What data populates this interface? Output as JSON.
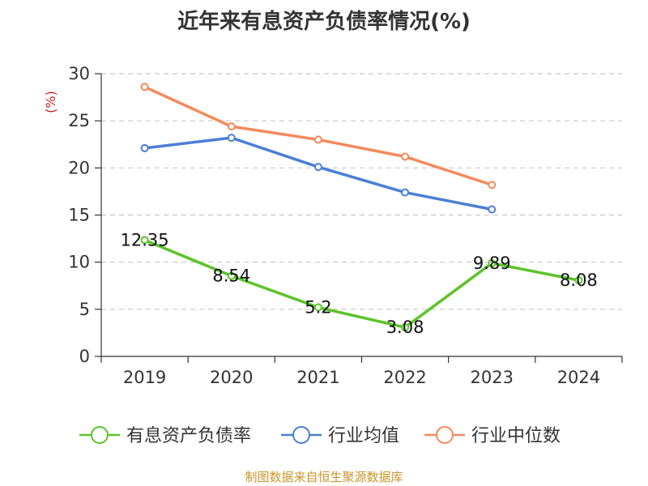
{
  "chart_data": {
    "type": "line",
    "title": "近年来有息资产负债率情况(%)",
    "ylabel": "(%)",
    "xlabel": "",
    "categories": [
      "2019",
      "2020",
      "2021",
      "2022",
      "2023",
      "2024"
    ],
    "ylim": [
      0,
      30
    ],
    "yticks": [
      "0",
      "5",
      "10",
      "15",
      "20",
      "25",
      "30"
    ],
    "grid": true,
    "legend_position": "bottom",
    "series": [
      {
        "name": "有息资产负债率",
        "color": "#5cc42a",
        "values": [
          12.35,
          8.54,
          5.2,
          3.08,
          9.89,
          8.08
        ],
        "labels": [
          "12.35",
          "8.54",
          "5.2",
          "3.08",
          "9.89",
          "8.08"
        ]
      },
      {
        "name": "行业均值",
        "color": "#4a7fd6",
        "values": [
          22.1,
          23.2,
          20.1,
          17.4,
          15.6,
          null
        ]
      },
      {
        "name": "行业中位数",
        "color": "#f5895b",
        "values": [
          28.6,
          24.4,
          23.0,
          21.2,
          18.2,
          null
        ]
      }
    ],
    "source": "制图数据来自恒生聚源数据库"
  }
}
